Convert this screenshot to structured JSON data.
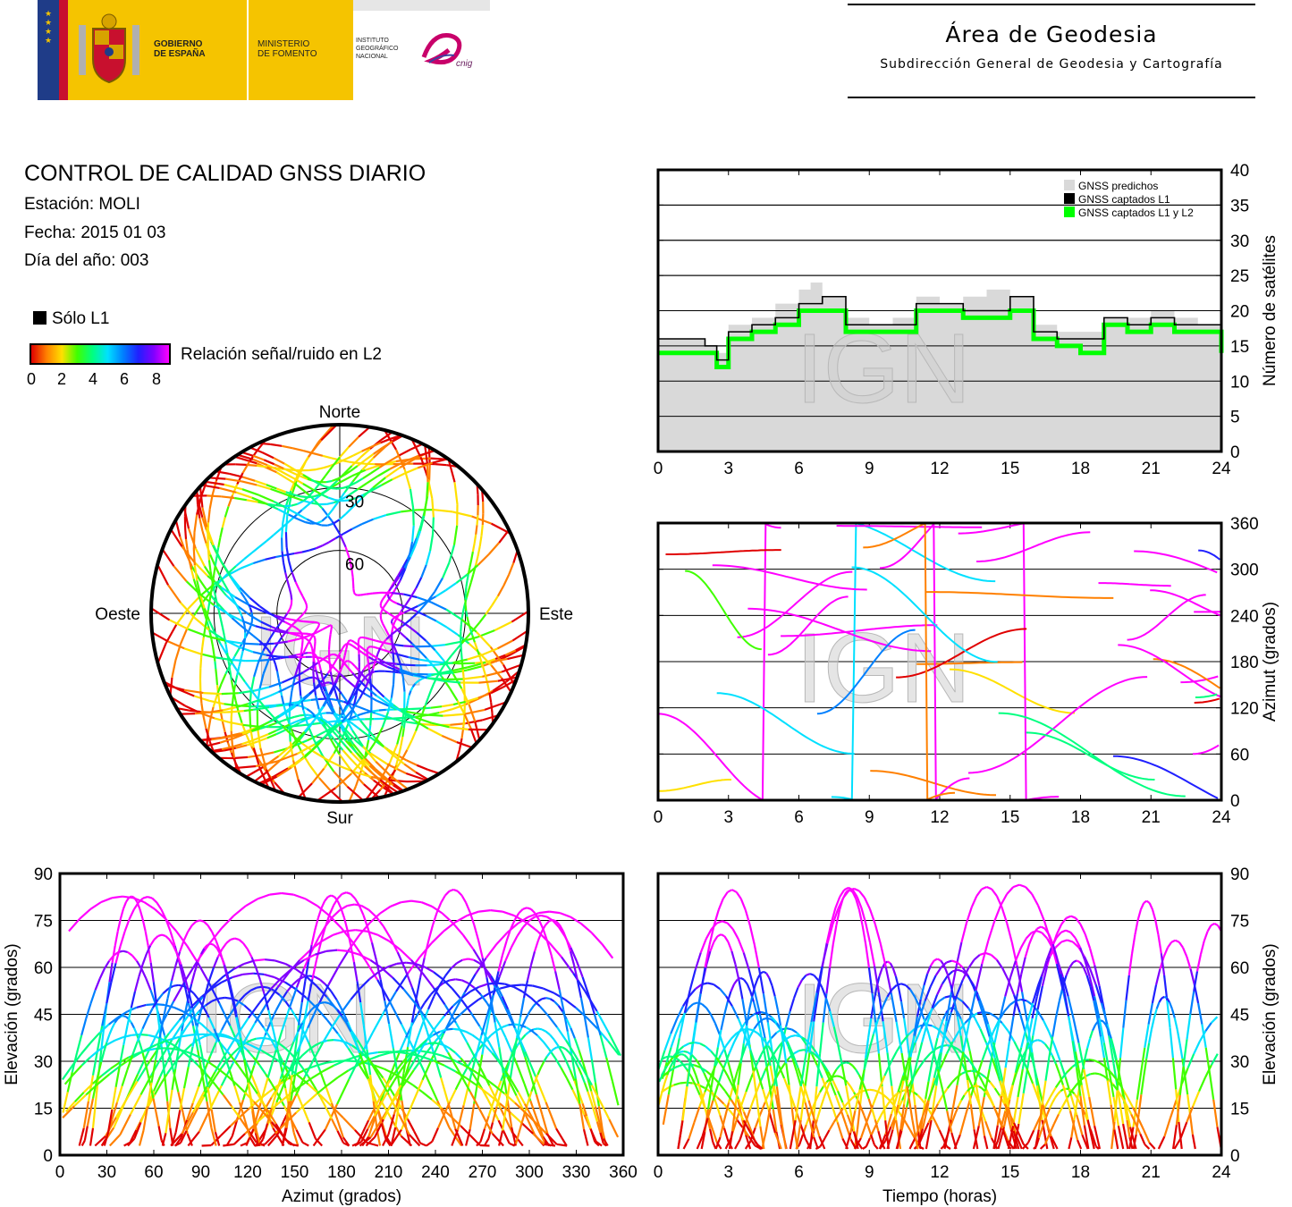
{
  "header": {
    "gobierno": [
      "GOBIERNO",
      "DE ESPAÑA"
    ],
    "ministerio": [
      "MINISTERIO",
      "DE FOMENTO"
    ],
    "instituto": [
      "INSTITUTO",
      "GEOGRÁFICO",
      "NACIONAL"
    ],
    "cnig": "cnig",
    "area_title": "Área de Geodesia",
    "area_subtitle": "Subdirección General de Geodesia y Cartografía"
  },
  "info": {
    "title": "CONTROL DE CALIDAD GNSS DIARIO",
    "station": "Estación: MOLI",
    "date": "Fecha: 2015 01 03",
    "doy": "Día del año: 003"
  },
  "legend": {
    "l1_only": "Sólo L1",
    "snr_label": "Relación señal/ruido en L2",
    "colorbar_ticks": [
      "0",
      "2",
      "4",
      "6",
      "8"
    ]
  },
  "watermark": "IGN",
  "colors": {
    "predicted": "#d9d9d9",
    "captured_l1": "#000000",
    "captured_l1_l2": "#00ff00",
    "snr_scale": [
      "#e00000",
      "#ff8000",
      "#ffe000",
      "#40ff00",
      "#00ff80",
      "#00e0ff",
      "#0080ff",
      "#2020ff",
      "#8000ff",
      "#ff00ff"
    ]
  },
  "chart_data": [
    {
      "id": "satellites",
      "type": "area",
      "ylabel": "Número de satélites",
      "xlim": [
        0,
        24
      ],
      "ylim": [
        0,
        40
      ],
      "xticks": [
        "0",
        "3",
        "6",
        "9",
        "12",
        "15",
        "18",
        "21",
        "24"
      ],
      "yticks": [
        "0",
        "5",
        "10",
        "15",
        "20",
        "25",
        "30",
        "35",
        "40"
      ],
      "grid": true,
      "legend_position": "top-right",
      "series": [
        {
          "name": "GNSS predichos",
          "x": [
            0,
            1,
            2,
            2.5,
            3,
            4,
            5,
            6,
            6.5,
            7,
            8,
            9,
            10,
            11,
            12,
            13,
            14,
            15,
            16,
            17,
            18,
            19,
            20,
            21,
            22,
            23,
            24
          ],
          "values": [
            16,
            16,
            15,
            14,
            18,
            19,
            21,
            23,
            24,
            22,
            19,
            18,
            19,
            22,
            21,
            22,
            23,
            22,
            18,
            17,
            17,
            19,
            19,
            20,
            19,
            18,
            15
          ]
        },
        {
          "name": "GNSS captados L1",
          "x": [
            0,
            1,
            2,
            2.5,
            3,
            4,
            5,
            6,
            6.5,
            7,
            8,
            9,
            10,
            11,
            12,
            13,
            14,
            15,
            16,
            17,
            18,
            19,
            20,
            21,
            22,
            23,
            24
          ],
          "values": [
            16,
            16,
            15,
            13,
            17,
            18,
            19,
            21,
            21,
            22,
            18,
            18,
            18,
            21,
            21,
            20,
            20,
            22,
            17,
            16,
            16,
            19,
            18,
            19,
            18,
            18,
            15
          ]
        },
        {
          "name": "GNSS captados L1 y L2",
          "x": [
            0,
            1,
            2,
            2.5,
            3,
            4,
            5,
            6,
            6.5,
            7,
            8,
            9,
            10,
            11,
            12,
            13,
            14,
            15,
            16,
            17,
            18,
            19,
            20,
            21,
            22,
            23,
            24
          ],
          "values": [
            14,
            14,
            14,
            12,
            16,
            17,
            18,
            20,
            20,
            20,
            17,
            17,
            17,
            20,
            20,
            19,
            19,
            20,
            16,
            15,
            14,
            18,
            17,
            18,
            17,
            17,
            14
          ]
        }
      ]
    },
    {
      "id": "azimuth-time",
      "type": "scatter",
      "ylabel": "Azimut (grados)",
      "xlim": [
        0,
        24
      ],
      "ylim": [
        0,
        360
      ],
      "xticks": [
        "0",
        "3",
        "6",
        "9",
        "12",
        "15",
        "18",
        "21",
        "24"
      ],
      "yticks": [
        "0",
        "60",
        "120",
        "180",
        "240",
        "300",
        "360"
      ],
      "grid": true
    },
    {
      "id": "skyplot",
      "type": "scatter",
      "directions": {
        "north": "Norte",
        "south": "Sur",
        "east": "Este",
        "west": "Oeste"
      },
      "rings": [
        "30",
        "60"
      ]
    },
    {
      "id": "elevation-azimuth",
      "type": "scatter",
      "xlabel": "Azimut (grados)",
      "ylabel": "Elevación (grados)",
      "xlim": [
        0,
        360
      ],
      "ylim": [
        0,
        90
      ],
      "xticks": [
        "0",
        "30",
        "60",
        "90",
        "120",
        "150",
        "180",
        "210",
        "240",
        "270",
        "300",
        "330",
        "360"
      ],
      "yticks": [
        "0",
        "15",
        "30",
        "45",
        "60",
        "75",
        "90"
      ],
      "grid": true
    },
    {
      "id": "elevation-time",
      "type": "scatter",
      "xlabel": "Tiempo (horas)",
      "ylabel": "Elevación (grados)",
      "xlim": [
        0,
        24
      ],
      "ylim": [
        0,
        90
      ],
      "xticks": [
        "0",
        "3",
        "6",
        "9",
        "12",
        "15",
        "18",
        "21",
        "24"
      ],
      "yticks": [
        "0",
        "15",
        "30",
        "45",
        "60",
        "75",
        "90"
      ],
      "grid": true
    }
  ]
}
